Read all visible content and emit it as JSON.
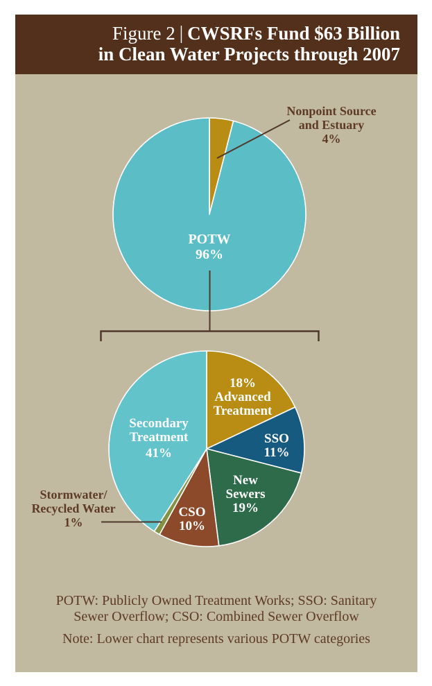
{
  "header": {
    "figure_label": "Figure 2",
    "separator": "|",
    "title_line1": "CWSRFs Fund $63 Billion",
    "title_line2": "in Clean Water Projects through 2007"
  },
  "chart_data": [
    {
      "type": "pie",
      "title": "CWSRFs Fund $63 Billion in Clean Water Projects through 2007",
      "start_angle_deg": 0,
      "direction": "clockwise",
      "slices": [
        {
          "label": "Nonpoint Source and Estuary",
          "value_pct": 4,
          "color": "#b98d13"
        },
        {
          "label": "POTW",
          "value_pct": 96,
          "color": "#5bbec6"
        }
      ]
    },
    {
      "type": "pie",
      "title": "POTW categories",
      "start_angle_deg": 0,
      "direction": "clockwise",
      "slices": [
        {
          "label": "Advanced Treatment",
          "value_pct": 18,
          "color": "#b98d13"
        },
        {
          "label": "SSO",
          "value_pct": 11,
          "color": "#175a7f"
        },
        {
          "label": "New Sewers",
          "value_pct": 19,
          "color": "#2e6b4a"
        },
        {
          "label": "CSO",
          "value_pct": 10,
          "color": "#8c4a2b"
        },
        {
          "label": "Stormwater/Recycled Water",
          "value_pct": 1,
          "color": "#849343"
        },
        {
          "label": "Secondary Treatment",
          "value_pct": 41,
          "color": "#63c3ca"
        }
      ]
    }
  ],
  "callouts": {
    "nonpoint": {
      "line1": "Nonpoint Source",
      "line2": "and Estuary",
      "line3": "4%"
    },
    "stormwater": {
      "line1": "Stormwater/",
      "line2": "Recycled Water",
      "line3": "1%"
    }
  },
  "pie_labels": {
    "potw": {
      "line1": "POTW",
      "line2": "96%"
    },
    "advanced": {
      "line1": "18%",
      "line2": "Advanced",
      "line3": "Treatment"
    },
    "sso": {
      "line1": "SSO",
      "line2": "11%"
    },
    "new_sewers": {
      "line1": "New",
      "line2": "Sewers",
      "line3": "19%"
    },
    "cso": {
      "line1": "CSO",
      "line2": "10%"
    },
    "secondary": {
      "line1": "Secondary",
      "line2": "Treatment",
      "line3": "41%"
    }
  },
  "footer": {
    "abbr_line1": "POTW: Publicly Owned Treatment Works; SSO: Sanitary",
    "abbr_line2": "Sewer Overflow; CSO: Combined Sewer Overflow",
    "note": "Note: Lower chart represents various POTW categories"
  },
  "colors": {
    "header-brown": "#53301b",
    "beige": "#c1baa1",
    "ink": "#5e3a26",
    "line": "#4f382a",
    "slice-stroke": "#ffffff"
  }
}
